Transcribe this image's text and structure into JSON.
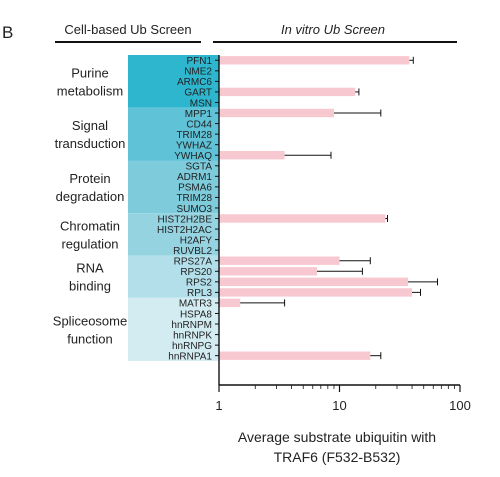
{
  "panel_letter": "B",
  "headers": {
    "left": "Cell-based Ub Screen",
    "right": "In vitro Ub Screen"
  },
  "colors": {
    "bar_fill": "#f8c8d0",
    "band_shades": [
      "#2eb6cf",
      "#5fc2d7",
      "#7ecbdc",
      "#96d3e1",
      "#b2dfea",
      "#d3ecf2"
    ],
    "line": "#111111"
  },
  "chart_data": {
    "type": "bar",
    "orientation": "horizontal",
    "x_scale": "log",
    "xlim": [
      1,
      100
    ],
    "xticks": [
      1,
      10,
      100
    ],
    "xlabel_lines": [
      "Average substrate ubiquitin with",
      "TRAF6 (F532-B532)"
    ],
    "groups": [
      {
        "label_lines": [
          "Purine",
          "metabolism"
        ],
        "proteins": [
          "PFN1",
          "NME2",
          "ARMC6",
          "GART",
          "MSN"
        ],
        "shade": 0
      },
      {
        "label_lines": [
          "Signal",
          "transduction"
        ],
        "proteins": [
          "MPP1",
          "CD44",
          "TRIM28",
          "YWHAZ",
          "YWHAQ"
        ],
        "shade": 1
      },
      {
        "label_lines": [
          "Protein",
          "degradation"
        ],
        "proteins": [
          "SGTA",
          "ADRM1",
          "PSMA6",
          "TRIM28",
          "SUMO3"
        ],
        "shade": 2
      },
      {
        "label_lines": [
          "Chromatin",
          "regulation"
        ],
        "proteins": [
          "HIST2H2BE",
          "HIST2H2AC",
          "H2AFY",
          "RUVBL2"
        ],
        "shade": 3
      },
      {
        "label_lines": [
          "RNA",
          "binding"
        ],
        "proteins": [
          "RPS27A",
          "RPS20",
          "RPS2",
          "RPL3"
        ],
        "shade": 4
      },
      {
        "label_lines": [
          "Spliceosome",
          "function"
        ],
        "proteins": [
          "MATR3",
          "HSPA8",
          "hnRNPM",
          "hnRNPK",
          "hnRNPG",
          "hnRNPA1"
        ],
        "shade": 5
      }
    ],
    "bars": [
      {
        "protein": "PFN1",
        "value": 38,
        "err_hi": 41
      },
      {
        "protein": "NME2",
        "value": null,
        "err_hi": null
      },
      {
        "protein": "ARMC6",
        "value": null,
        "err_hi": null
      },
      {
        "protein": "GART",
        "value": 13.5,
        "err_hi": 14.5
      },
      {
        "protein": "MSN",
        "value": null,
        "err_hi": null
      },
      {
        "protein": "MPP1",
        "value": 9,
        "err_hi": 22
      },
      {
        "protein": "CD44",
        "value": null,
        "err_hi": null
      },
      {
        "protein": "TRIM28",
        "value": null,
        "err_hi": null
      },
      {
        "protein": "YWHAZ",
        "value": null,
        "err_hi": null
      },
      {
        "protein": "YWHAQ",
        "value": 3.5,
        "err_hi": 8.5
      },
      {
        "protein": "SGTA",
        "value": null,
        "err_hi": null
      },
      {
        "protein": "ADRM1",
        "value": null,
        "err_hi": null
      },
      {
        "protein": "PSMA6",
        "value": null,
        "err_hi": null
      },
      {
        "protein": "TRIM28",
        "value": null,
        "err_hi": null
      },
      {
        "protein": "SUMO3",
        "value": null,
        "err_hi": null
      },
      {
        "protein": "HIST2H2BE",
        "value": 24,
        "err_hi": 25
      },
      {
        "protein": "HIST2H2AC",
        "value": null,
        "err_hi": null
      },
      {
        "protein": "H2AFY",
        "value": null,
        "err_hi": null
      },
      {
        "protein": "RUVBL2",
        "value": null,
        "err_hi": null
      },
      {
        "protein": "RPS27A",
        "value": 10,
        "err_hi": 18
      },
      {
        "protein": "RPS20",
        "value": 6.5,
        "err_hi": 15.5
      },
      {
        "protein": "RPS2",
        "value": 37,
        "err_hi": 65
      },
      {
        "protein": "RPL3",
        "value": 40,
        "err_hi": 47
      },
      {
        "protein": "MATR3",
        "value": 1.5,
        "err_hi": 3.5
      },
      {
        "protein": "HSPA8",
        "value": null,
        "err_hi": null
      },
      {
        "protein": "hnRNPM",
        "value": null,
        "err_hi": null
      },
      {
        "protein": "hnRNPK",
        "value": null,
        "err_hi": null
      },
      {
        "protein": "hnRNPG",
        "value": null,
        "err_hi": null
      },
      {
        "protein": "hnRNPA1",
        "value": 18,
        "err_hi": 22
      }
    ]
  }
}
